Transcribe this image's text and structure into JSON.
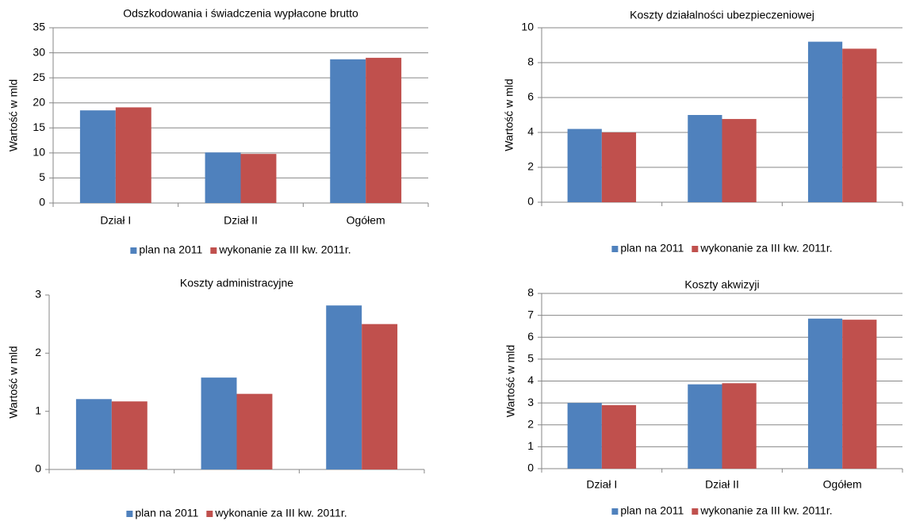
{
  "chart_data": [
    {
      "type": "bar",
      "title": "Odszkodowania i świadczenia wypłacone brutto",
      "ylabel": "Wartość w mld",
      "categories": [
        "Dział I",
        "Dział II",
        "Ogółem"
      ],
      "series": [
        {
          "name": "plan na 2011",
          "color": "#4f81bd",
          "values": [
            18.5,
            10.1,
            28.7
          ]
        },
        {
          "name": "wykonanie za III kw. 2011r.",
          "color": "#c0504d",
          "values": [
            19.1,
            9.8,
            29.0
          ]
        }
      ],
      "ylim": [
        0,
        35
      ],
      "yticks": [
        0,
        5,
        10,
        15,
        20,
        25,
        30,
        35
      ],
      "grid": true
    },
    {
      "type": "bar",
      "title": "Koszty działalności ubezpieczeniowej",
      "ylabel": "Wartość w mld",
      "categories": [
        null,
        null,
        null
      ],
      "series": [
        {
          "name": "plan na 2011",
          "color": "#4f81bd",
          "values": [
            4.2,
            5.0,
            9.2
          ]
        },
        {
          "name": "wykonanie za III kw. 2011r.",
          "color": "#c0504d",
          "values": [
            4.0,
            4.77,
            8.8
          ]
        }
      ],
      "ylim": [
        0,
        10
      ],
      "yticks": [
        0,
        2,
        4,
        6,
        8,
        10
      ],
      "grid": true
    },
    {
      "type": "bar",
      "title": "Koszty administracyjne",
      "ylabel": "Wartość w mld",
      "categories": [
        null,
        null,
        null
      ],
      "series": [
        {
          "name": "plan na 2011",
          "color": "#4f81bd",
          "values": [
            1.21,
            1.58,
            2.82
          ]
        },
        {
          "name": "wykonanie za III kw. 2011r.",
          "color": "#c0504d",
          "values": [
            1.17,
            1.3,
            2.5
          ]
        }
      ],
      "ylim": [
        0,
        3
      ],
      "yticks": [
        0,
        1,
        2,
        3
      ],
      "grid": false
    },
    {
      "type": "bar",
      "title": "Koszty akwizyji",
      "ylabel": "Wartość w mld",
      "categories": [
        "Dział I",
        "Dział II",
        "Ogółem"
      ],
      "series": [
        {
          "name": "plan na 2011",
          "color": "#4f81bd",
          "values": [
            3.0,
            3.85,
            6.85
          ]
        },
        {
          "name": "wykonanie za III kw. 2011r.",
          "color": "#c0504d",
          "values": [
            2.9,
            3.9,
            6.8
          ]
        }
      ],
      "ylim": [
        0,
        8
      ],
      "yticks": [
        0,
        1,
        2,
        3,
        4,
        5,
        6,
        7,
        8
      ],
      "grid": true
    }
  ]
}
